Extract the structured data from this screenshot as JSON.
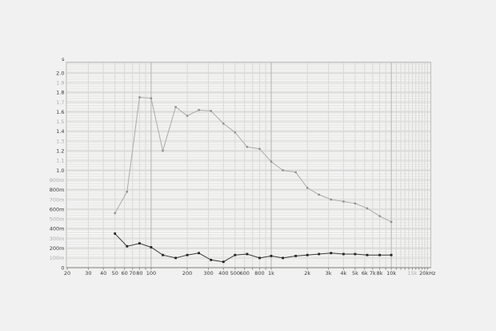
{
  "chart_data": {
    "type": "line",
    "title": "",
    "description": "Reverberation time per third-octave band, two series, log frequency axis",
    "y_axis": {
      "unit_label": "s",
      "min": 0,
      "max": 2.11,
      "major_step": 0.1,
      "grid": true,
      "ticks": [
        {
          "label": "2.0",
          "value": 2.0,
          "strong": true
        },
        {
          "label": "1.9",
          "value": 1.9,
          "strong": false
        },
        {
          "label": "1.8",
          "value": 1.8,
          "strong": true
        },
        {
          "label": "1.7",
          "value": 1.7,
          "strong": false
        },
        {
          "label": "1.6",
          "value": 1.6,
          "strong": true
        },
        {
          "label": "1.5",
          "value": 1.5,
          "strong": false
        },
        {
          "label": "1.4",
          "value": 1.4,
          "strong": true
        },
        {
          "label": "1.3",
          "value": 1.3,
          "strong": false
        },
        {
          "label": "1.2",
          "value": 1.2,
          "strong": true
        },
        {
          "label": "1.1",
          "value": 1.1,
          "strong": false
        },
        {
          "label": "1.0",
          "value": 1.0,
          "strong": true
        },
        {
          "label": "900m",
          "value": 0.9,
          "strong": false
        },
        {
          "label": "800m",
          "value": 0.8,
          "strong": true
        },
        {
          "label": "700m",
          "value": 0.7,
          "strong": false
        },
        {
          "label": "600m",
          "value": 0.6,
          "strong": true
        },
        {
          "label": "500m",
          "value": 0.5,
          "strong": false
        },
        {
          "label": "400m",
          "value": 0.4,
          "strong": true
        },
        {
          "label": "300m",
          "value": 0.3,
          "strong": false
        },
        {
          "label": "200m",
          "value": 0.2,
          "strong": true
        },
        {
          "label": "100m",
          "value": 0.1,
          "strong": false
        },
        {
          "label": "0",
          "value": 0,
          "strong": true
        }
      ]
    },
    "x_axis": {
      "scale": "log",
      "min_hz": 20,
      "max_hz": 20000,
      "grid": true,
      "major_gridlines_hz": [
        100,
        1000,
        10000
      ],
      "ticks": [
        {
          "label": "20",
          "f": 20,
          "strong": true
        },
        {
          "label": "30",
          "f": 30,
          "strong": true
        },
        {
          "label": "40",
          "f": 40,
          "strong": true
        },
        {
          "label": "50",
          "f": 50,
          "strong": true
        },
        {
          "label": "60",
          "f": 60,
          "strong": true
        },
        {
          "label": "70",
          "f": 70,
          "strong": true
        },
        {
          "label": "80",
          "f": 80,
          "strong": true
        },
        {
          "label": "100",
          "f": 100,
          "strong": true
        },
        {
          "label": "200",
          "f": 200,
          "strong": true
        },
        {
          "label": "300",
          "f": 300,
          "strong": true
        },
        {
          "label": "400",
          "f": 400,
          "strong": true
        },
        {
          "label": "500",
          "f": 500,
          "strong": true
        },
        {
          "label": "600",
          "f": 600,
          "strong": true
        },
        {
          "label": "800",
          "f": 800,
          "strong": true
        },
        {
          "label": "1k",
          "f": 1000,
          "strong": true
        },
        {
          "label": "2k",
          "f": 2000,
          "strong": true
        },
        {
          "label": "3k",
          "f": 3000,
          "strong": true
        },
        {
          "label": "4k",
          "f": 4000,
          "strong": true
        },
        {
          "label": "5k",
          "f": 5000,
          "strong": true
        },
        {
          "label": "6k",
          "f": 6000,
          "strong": true
        },
        {
          "label": "7k",
          "f": 7000,
          "strong": true
        },
        {
          "label": "8k",
          "f": 8000,
          "strong": true
        },
        {
          "label": "10k",
          "f": 10000,
          "strong": true
        },
        {
          "label": "15k",
          "f": 15000,
          "strong": false
        },
        {
          "label": "20kHz",
          "f": 20000,
          "strong": true
        }
      ]
    },
    "frequencies_hz": [
      50,
      63,
      80,
      100,
      125,
      160,
      200,
      250,
      315,
      400,
      500,
      630,
      800,
      1000,
      1250,
      1600,
      2000,
      2500,
      3150,
      4000,
      5000,
      6300,
      8000,
      10000
    ],
    "series": [
      {
        "name": "upper-gray-curve",
        "line_color": "#ababaa",
        "marker_color": "#8f8f8e",
        "marker": "square",
        "marker_size": 2.4,
        "values_s": [
          0.56,
          0.78,
          1.75,
          1.74,
          1.2,
          1.65,
          1.56,
          1.62,
          1.61,
          1.48,
          1.39,
          1.24,
          1.22,
          1.09,
          1.0,
          0.98,
          0.82,
          0.75,
          0.7,
          0.68,
          0.66,
          0.61,
          0.53,
          0.47
        ]
      },
      {
        "name": "lower-black-curve",
        "line_color": "#3a3a3a",
        "marker_color": "#222222",
        "marker": "square",
        "marker_size": 2.8,
        "values_s": [
          0.35,
          0.22,
          0.25,
          0.21,
          0.13,
          0.1,
          0.13,
          0.15,
          0.08,
          0.06,
          0.13,
          0.14,
          0.1,
          0.12,
          0.1,
          0.12,
          0.13,
          0.14,
          0.15,
          0.14,
          0.14,
          0.13,
          0.13,
          0.13
        ]
      }
    ],
    "legend": null,
    "colors": {
      "page_bg": "#f0f1f0",
      "plot_bg": "#ebebea",
      "minor_h_stripe": "rgba(255,255,255,0.7)",
      "h_gridline": "#dfdfde",
      "h_gridline_strong": "#d3d3d2",
      "v_gridline": "#d9d9d8",
      "v_gridline_major": "#b3b3b2",
      "plot_border": "#c4c4c3",
      "axis_line": "#8b8b8a",
      "label_strong": "#3a3a3a",
      "label_light": "#adadac"
    }
  }
}
